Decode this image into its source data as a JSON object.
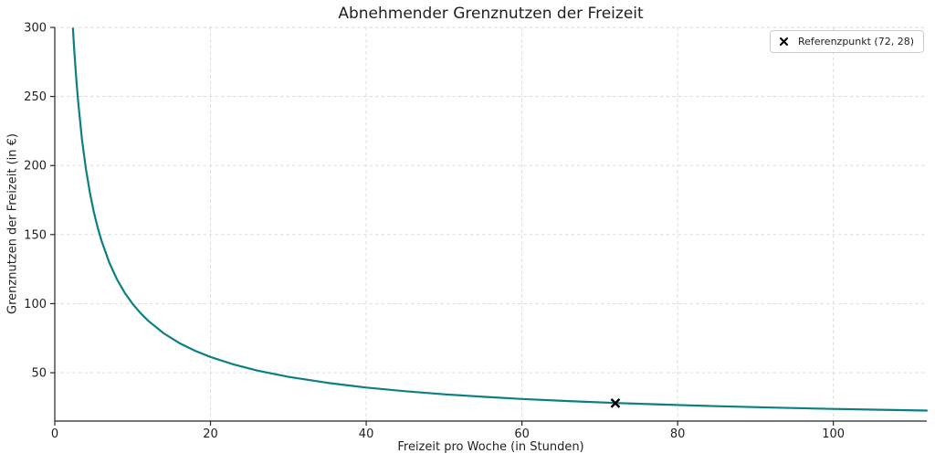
{
  "chart_data": {
    "type": "line",
    "title": "Abnehmender Grenznutzen der Freizeit",
    "xlabel": "Freizeit pro Woche (in Stunden)",
    "ylabel": "Grenznutzen der Freizeit (in €)",
    "xlim": [
      0,
      112
    ],
    "ylim": [
      15,
      300
    ],
    "x_ticks": [
      0,
      20,
      40,
      60,
      80,
      100
    ],
    "y_ticks": [
      50,
      100,
      150,
      200,
      250,
      300
    ],
    "grid": true,
    "grid_style": "dashed",
    "colors": {
      "curve": "#0c8080",
      "marker": "#000000",
      "spine": "#262626",
      "tick_label": "#1f1f1f",
      "gridline": "#d9d9d9",
      "background": "#ffffff"
    },
    "series": [
      {
        "name": "Grenznutzen der Freizeit",
        "color": "#0c8080",
        "x": [
          2.33,
          2.5,
          2.8,
          3,
          3.5,
          4,
          4.5,
          5,
          5.5,
          6,
          7,
          8,
          9,
          10,
          11,
          12,
          14,
          16,
          18,
          20,
          23,
          26,
          30,
          35,
          40,
          45,
          50,
          55,
          60,
          66,
          72,
          78,
          85,
          92,
          100,
          106,
          112
        ],
        "y": [
          299.2,
          283.4,
          259.6,
          246.2,
          218.7,
          197.5,
          180.6,
          166.8,
          155.3,
          145.5,
          129.7,
          117.5,
          107.8,
          99.8,
          93.2,
          87.6,
          78.5,
          71.5,
          65.9,
          61.4,
          55.9,
          51.6,
          47.0,
          42.7,
          39.3,
          36.6,
          34.4,
          32.6,
          31.0,
          29.5,
          28.1,
          27.0,
          25.8,
          24.8,
          23.8,
          23.2,
          22.6
        ]
      }
    ],
    "reference_point": {
      "x": 72,
      "y": 28,
      "marker": "x",
      "color": "#000000"
    },
    "legend": {
      "position": "upper right",
      "entries": [
        {
          "label": "Referenzpunkt (72, 28)",
          "marker": "x-marker-icon",
          "color": "#000000"
        }
      ]
    }
  },
  "layout_labels": {
    "figure": "matplotlib-style line chart"
  }
}
